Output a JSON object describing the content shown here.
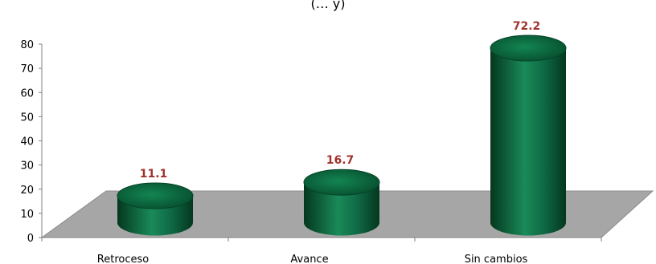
{
  "chart_data": {
    "type": "bar",
    "style": "3d-cylinder",
    "title": "(… y)",
    "categories": [
      "Retroceso",
      "Avance",
      "Sin cambios"
    ],
    "values": [
      11.1,
      16.7,
      72.2
    ],
    "value_labels": [
      "11.1",
      "16.7",
      "72.2"
    ],
    "ylim": [
      0,
      80
    ],
    "yticks": [
      0,
      10,
      20,
      30,
      40,
      50,
      60,
      70,
      80
    ],
    "grid": false,
    "legend": "none",
    "colors": {
      "bar": "#0f6b45",
      "bar_dark": "#04371f",
      "bar_light": "#2a9a68",
      "floor": "#a6a6a6",
      "floor_edge": "#8c8c8c",
      "data_label": "#a0332e",
      "axis": "#808080"
    }
  }
}
